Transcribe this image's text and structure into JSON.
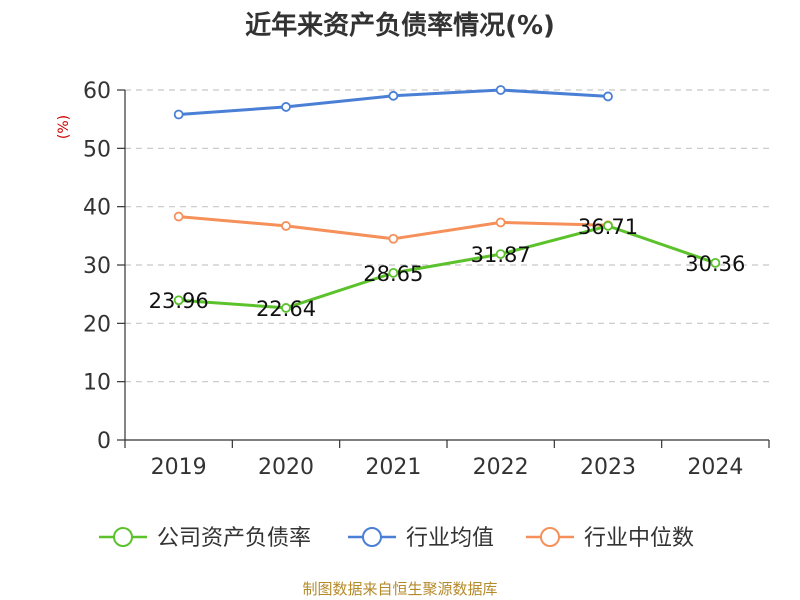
{
  "chart_data": {
    "type": "line",
    "title": "近年来资产负债率情况(%)",
    "ylabel": "(%)",
    "xlabel": "",
    "categories": [
      "2019",
      "2020",
      "2021",
      "2022",
      "2023",
      "2024"
    ],
    "ylim": [
      0,
      60
    ],
    "yticks": [
      0,
      10,
      20,
      30,
      40,
      50,
      60
    ],
    "grid": true,
    "legend_position": "bottom",
    "series": [
      {
        "name": "公司资产负债率",
        "color": "#5cc22c",
        "values": [
          23.96,
          22.64,
          28.65,
          31.87,
          36.71,
          30.36
        ],
        "labels": [
          "23.96",
          "22.64",
          "28.65",
          "31.87",
          "36.71",
          "30.36"
        ]
      },
      {
        "name": "行业均值",
        "color": "#4a7fd6",
        "values": [
          55.8,
          57.1,
          59.0,
          60.0,
          58.9,
          null
        ]
      },
      {
        "name": "行业中位数",
        "color": "#f5905a",
        "values": [
          38.3,
          36.7,
          34.5,
          37.3,
          36.8,
          null
        ]
      }
    ]
  },
  "source": "制图数据来自恒生聚源数据库"
}
